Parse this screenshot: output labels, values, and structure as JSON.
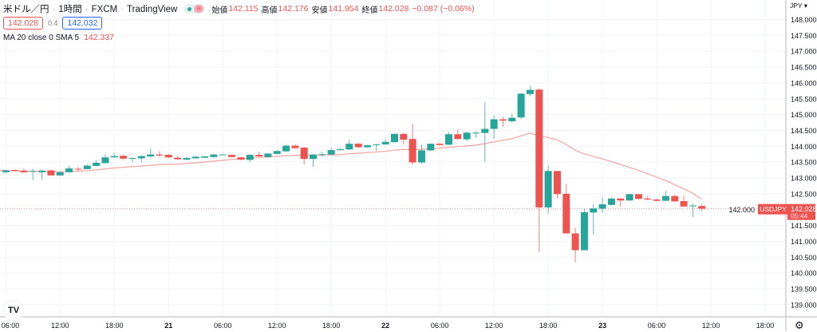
{
  "header": {
    "symbol": "米ドル／円",
    "interval": "1時間",
    "exchange": "FXCM",
    "source": "TradingView",
    "ohlc": [
      {
        "label": "始値",
        "value": "142.115"
      },
      {
        "label": "高値",
        "value": "142.176"
      },
      {
        "label": "安値",
        "value": "141.954"
      },
      {
        "label": "終値",
        "value": "142.028"
      }
    ],
    "change": "−0.087 (−0.06%)",
    "bid": "142.028",
    "spread": "0.4",
    "ask": "142.032",
    "indicator_label": "MA 20 close 0 SMA 5",
    "indicator_value": "142.337"
  },
  "price_axis": {
    "currency": "JPY"
  },
  "last_price": {
    "symbol": "USDJPY",
    "price": "142.028",
    "countdown": "05:44"
  },
  "colors": {
    "up": "#26a69a",
    "down": "#ef5350",
    "ma": "#f5a3a1",
    "grid": "#f0f3fa"
  },
  "chart_data": {
    "type": "candlestick",
    "interval": "1h",
    "ylim": [
      138.75,
      148.5
    ],
    "yticks": [
      "148.000",
      "147.500",
      "147.000",
      "146.500",
      "146.000",
      "145.500",
      "145.000",
      "144.500",
      "144.000",
      "143.500",
      "143.000",
      "142.500",
      "142.000",
      "141.500",
      "141.000",
      "140.500",
      "140.000",
      "139.500",
      "139.000"
    ],
    "xticks": [
      {
        "label": "06:00",
        "hour": 0
      },
      {
        "label": "12:00",
        "hour": 6
      },
      {
        "label": "18:00",
        "hour": 12
      },
      {
        "label": "21",
        "hour": 18,
        "bold": true
      },
      {
        "label": "06:00",
        "hour": 24
      },
      {
        "label": "12:00",
        "hour": 30
      },
      {
        "label": "18:00",
        "hour": 36
      },
      {
        "label": "22",
        "hour": 42,
        "bold": true
      },
      {
        "label": "06:00",
        "hour": 48
      },
      {
        "label": "12:00",
        "hour": 54
      },
      {
        "label": "18:00",
        "hour": 60
      },
      {
        "label": "23",
        "hour": 66,
        "bold": true
      },
      {
        "label": "06:00",
        "hour": 72
      },
      {
        "label": "12:00",
        "hour": 78
      },
      {
        "label": "18:00",
        "hour": 84
      }
    ],
    "ohlc": [
      [
        143.18,
        143.26,
        143.16,
        143.24
      ],
      [
        143.25,
        143.27,
        143.21,
        143.22
      ],
      [
        143.23,
        143.3,
        143.17,
        143.18
      ],
      [
        143.2,
        143.29,
        142.93,
        143.22
      ],
      [
        143.18,
        143.26,
        142.94,
        143.23
      ],
      [
        143.24,
        143.26,
        143.07,
        143.08
      ],
      [
        143.08,
        143.2,
        143.07,
        143.18
      ],
      [
        143.18,
        143.38,
        143.17,
        143.3
      ],
      [
        143.29,
        143.35,
        143.22,
        143.27
      ],
      [
        143.28,
        143.42,
        143.27,
        143.39
      ],
      [
        143.38,
        143.56,
        143.37,
        143.48
      ],
      [
        143.47,
        143.75,
        143.46,
        143.65
      ],
      [
        143.65,
        143.79,
        143.63,
        143.69
      ],
      [
        143.7,
        143.73,
        143.58,
        143.61
      ],
      [
        143.61,
        143.64,
        143.49,
        143.63
      ],
      [
        143.62,
        143.72,
        143.49,
        143.69
      ],
      [
        143.68,
        143.93,
        143.64,
        143.74
      ],
      [
        143.74,
        143.85,
        143.66,
        143.71
      ],
      [
        143.73,
        143.75,
        143.63,
        143.65
      ],
      [
        143.64,
        143.69,
        143.57,
        143.59
      ],
      [
        143.58,
        143.66,
        143.56,
        143.63
      ],
      [
        143.62,
        143.7,
        143.61,
        143.67
      ],
      [
        143.64,
        143.7,
        143.63,
        143.68
      ],
      [
        143.66,
        143.77,
        143.64,
        143.74
      ],
      [
        143.73,
        143.75,
        143.72,
        143.74
      ],
      [
        143.73,
        143.74,
        143.65,
        143.66
      ],
      [
        143.65,
        143.66,
        143.55,
        143.58
      ],
      [
        143.57,
        143.75,
        143.49,
        143.73
      ],
      [
        143.73,
        143.83,
        143.67,
        143.68
      ],
      [
        143.66,
        143.79,
        143.64,
        143.77
      ],
      [
        143.76,
        143.88,
        143.74,
        143.85
      ],
      [
        143.84,
        144.04,
        143.83,
        144.02
      ],
      [
        144.02,
        144.06,
        143.93,
        143.94
      ],
      [
        143.96,
        143.97,
        143.42,
        143.6
      ],
      [
        143.6,
        143.76,
        143.35,
        143.74
      ],
      [
        143.73,
        143.83,
        143.67,
        143.75
      ],
      [
        143.74,
        143.96,
        143.73,
        143.88
      ],
      [
        143.88,
        143.94,
        143.87,
        143.91
      ],
      [
        143.9,
        144.21,
        143.89,
        144.08
      ],
      [
        144.08,
        144.1,
        143.94,
        143.97
      ],
      [
        143.97,
        144.05,
        143.95,
        144.03
      ],
      [
        144.04,
        144.08,
        143.85,
        144.06
      ],
      [
        144.06,
        144.22,
        144.05,
        144.14
      ],
      [
        144.13,
        144.41,
        144.12,
        144.39
      ],
      [
        144.39,
        144.42,
        144.06,
        144.21
      ],
      [
        144.23,
        144.71,
        143.41,
        143.49
      ],
      [
        143.49,
        144.05,
        143.45,
        143.87
      ],
      [
        143.87,
        144.09,
        143.86,
        144.08
      ],
      [
        144.08,
        144.1,
        144.02,
        144.04
      ],
      [
        144.05,
        144.44,
        144.04,
        144.38
      ],
      [
        144.38,
        144.54,
        144.2,
        144.23
      ],
      [
        144.22,
        144.47,
        144.16,
        144.43
      ],
      [
        144.42,
        144.48,
        144.27,
        144.43
      ],
      [
        144.42,
        145.4,
        143.51,
        144.55
      ],
      [
        144.55,
        144.97,
        144.24,
        144.85
      ],
      [
        144.85,
        144.93,
        144.62,
        144.81
      ],
      [
        144.79,
        145.03,
        144.76,
        144.9
      ],
      [
        144.91,
        145.68,
        144.87,
        145.66
      ],
      [
        145.65,
        145.89,
        145.58,
        145.78
      ],
      [
        145.79,
        145.83,
        140.66,
        142.07
      ],
      [
        142.07,
        143.39,
        141.87,
        143.22
      ],
      [
        143.22,
        143.22,
        142.36,
        142.49
      ],
      [
        142.5,
        142.82,
        141.25,
        141.25
      ],
      [
        141.25,
        141.43,
        140.34,
        140.72
      ],
      [
        140.72,
        142.03,
        140.72,
        141.92
      ],
      [
        141.91,
        142.18,
        141.21,
        142.04
      ],
      [
        142.03,
        142.39,
        141.9,
        142.17
      ],
      [
        142.15,
        142.39,
        142.13,
        142.35
      ],
      [
        142.35,
        142.36,
        142.1,
        142.29
      ],
      [
        142.29,
        142.5,
        142.28,
        142.49
      ],
      [
        142.49,
        142.5,
        142.31,
        142.34
      ],
      [
        142.35,
        142.43,
        142.3,
        142.32
      ],
      [
        142.32,
        142.35,
        142.26,
        142.28
      ],
      [
        142.28,
        142.59,
        142.27,
        142.43
      ],
      [
        142.43,
        142.47,
        142.25,
        142.26
      ],
      [
        142.27,
        142.45,
        142.08,
        142.1
      ],
      [
        142.11,
        142.2,
        141.76,
        142.13
      ],
      [
        142.115,
        142.176,
        141.954,
        142.028
      ]
    ],
    "ma": {
      "type": "SMA",
      "length": 20,
      "source": "close",
      "offset": 0
    },
    "grid": true
  }
}
